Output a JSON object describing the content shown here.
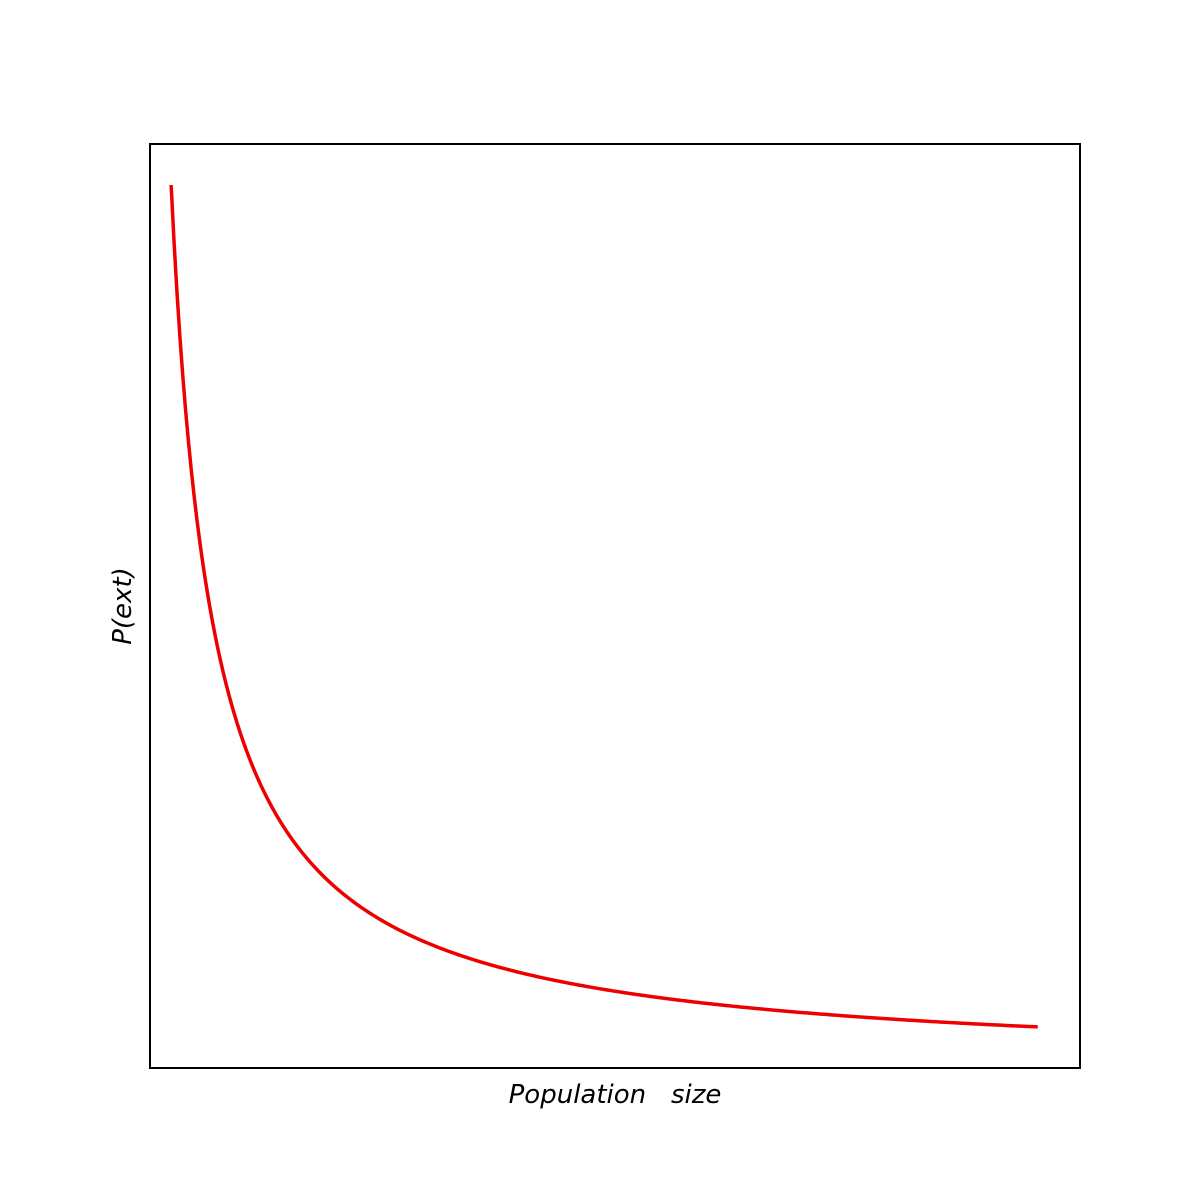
{
  "chart_data": {
    "type": "line",
    "title": "",
    "xlabel": "Population   size",
    "ylabel": "P(ext)",
    "xticks": [],
    "yticks": [],
    "grid": false,
    "legend": "none",
    "xlim": [
      0.5,
      22.5
    ],
    "ylim": [
      0,
      22.5
    ],
    "series": [
      {
        "name": "",
        "color": "#ee0000",
        "function": "1/x",
        "x": [
          1,
          1.25,
          1.5,
          1.75,
          2,
          2.5,
          3,
          3.5,
          4,
          5,
          6,
          7,
          8,
          10,
          12,
          14,
          17,
          20,
          21.5
        ],
        "y": [
          21.5,
          17.2,
          14.33,
          12.29,
          10.75,
          8.6,
          7.17,
          6.14,
          5.38,
          4.3,
          3.58,
          3.07,
          2.69,
          2.15,
          1.79,
          1.54,
          1.26,
          1.08,
          1.0
        ]
      }
    ]
  }
}
